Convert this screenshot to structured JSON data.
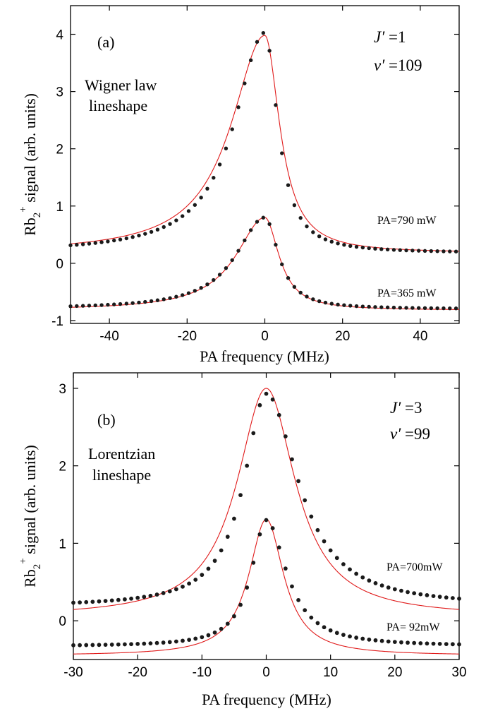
{
  "chart_data": [
    {
      "panel": "(a)",
      "type": "scatter",
      "xlabel": "PA frequency (MHz)",
      "ylabel": "Rb2+ signal (arb. units)",
      "xlim": [
        -50,
        50
      ],
      "ylim": [
        -1.05,
        4.5
      ],
      "xticks": [
        -40,
        -20,
        0,
        20,
        40
      ],
      "yticks": [
        -1,
        0,
        1,
        2,
        3,
        4
      ],
      "annotations": {
        "tag": "(a)",
        "J": "=1",
        "v": "=109",
        "lineshape_1": "Wigner law",
        "lineshape_2": "lineshape"
      },
      "series": [
        {
          "name": "PA=790 mW",
          "baseline": 0.18,
          "amp": 3.85,
          "center": 0,
          "width_left": 9.5,
          "width_right": 4.0,
          "fit_baseline": 0.18,
          "fit_amp": 3.8,
          "fit_width_left": 10.5,
          "fit_width_right": 4.6,
          "left_tail": 0.16
        },
        {
          "name": "PA=365 mW",
          "baseline": -0.8,
          "amp": 1.6,
          "center": 0,
          "width_left": 9.0,
          "width_right": 4.3,
          "fit_baseline": -0.82,
          "fit_amp": 1.62,
          "fit_width_left": 9.0,
          "fit_width_right": 4.4,
          "left_tail": 0.04
        }
      ]
    },
    {
      "panel": "(b)",
      "type": "scatter",
      "xlabel": "PA frequency  (MHz)",
      "ylabel": "Rb2+ signal (arb. units)",
      "xlim": [
        -30,
        30
      ],
      "ylim": [
        -0.5,
        3.2
      ],
      "xticks": [
        -30,
        -20,
        -10,
        0,
        10,
        20,
        30
      ],
      "yticks": [
        0,
        1,
        2,
        3
      ],
      "annotations": {
        "tag": "(b)",
        "J": "=3",
        "v": "=99",
        "lineshape_1": "Lorentzian",
        "lineshape_2": "lineshape"
      },
      "series": [
        {
          "name": "PA=700mW",
          "baseline": 0.18,
          "amp": 2.75,
          "center": 0,
          "width_left": 4.2,
          "width_right": 6.0,
          "fit_baseline": 0.05,
          "fit_amp": 2.95,
          "fit_width_left": 5.5,
          "fit_width_right": 5.5,
          "left_tail": 0.1
        },
        {
          "name": "PA= 92mW",
          "baseline": -0.33,
          "amp": 1.63,
          "center": 0,
          "width_left": 2.8,
          "width_right": 3.8,
          "fit_baseline": -0.45,
          "fit_amp": 1.76,
          "fit_width_left": 3.3,
          "fit_width_right": 3.3,
          "left_tail": 0.03
        }
      ]
    }
  ]
}
